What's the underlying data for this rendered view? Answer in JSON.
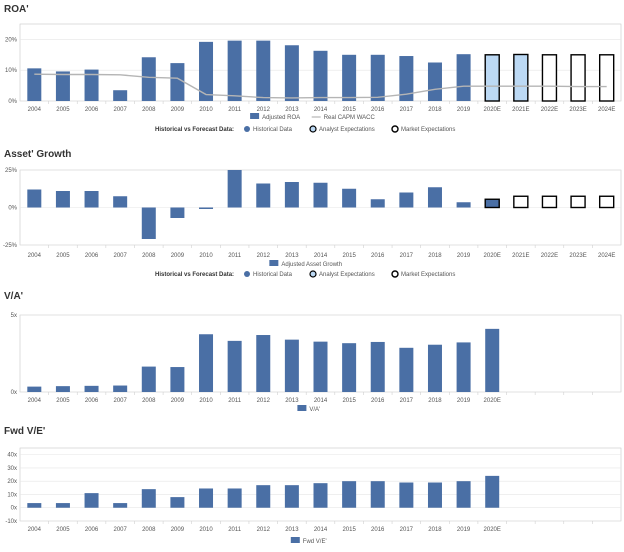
{
  "colors": {
    "historical": "#4a6fa5",
    "analyst": "#bcd9f4",
    "market_stroke": "#000000",
    "wacc": "#b5b5b5",
    "frame": "#c8c8c8"
  },
  "chart_data": [
    {
      "id": "roa",
      "type": "bar",
      "title": "ROA'",
      "categories": [
        "2004",
        "2005",
        "2006",
        "2007",
        "2008",
        "2009",
        "2010",
        "2011",
        "2012",
        "2013",
        "2014",
        "2015",
        "2016",
        "2017",
        "2018",
        "2019",
        "2020E",
        "2021E",
        "2022E",
        "2023E",
        "2024E"
      ],
      "series": [
        {
          "name": "Adjusted ROA",
          "values": [
            10.6,
            9.6,
            10.2,
            3.5,
            14.2,
            12.3,
            19.2,
            19.6,
            19.6,
            18.1,
            16.3,
            15.0,
            15.0,
            14.6,
            12.5,
            15.2,
            15.0,
            15.1,
            15.0,
            15.0,
            15.0
          ]
        },
        {
          "name": "Real CAPM WACC",
          "type": "line",
          "values": [
            8.7,
            8.6,
            8.6,
            8.5,
            7.7,
            7.4,
            2.1,
            1.7,
            1.1,
            1.0,
            1.1,
            1.1,
            1.2,
            2.2,
            3.8,
            4.8,
            4.8,
            4.8,
            4.8,
            4.7,
            4.7
          ]
        }
      ],
      "bar_styles": [
        "h",
        "h",
        "h",
        "h",
        "h",
        "h",
        "h",
        "h",
        "h",
        "h",
        "h",
        "h",
        "h",
        "h",
        "h",
        "h",
        "a",
        "a",
        "m",
        "m",
        "m"
      ],
      "yticks": [
        0,
        10,
        20
      ],
      "ytick_labels": [
        "0%",
        "10%",
        "20%"
      ],
      "ylim": [
        0,
        25
      ],
      "legend_series": [
        "Adjusted ROA",
        "Real CAPM WACC"
      ],
      "forecast_legend": true
    },
    {
      "id": "asset_growth",
      "type": "bar",
      "title": "Asset' Growth",
      "categories": [
        "2004",
        "2005",
        "2006",
        "2007",
        "2008",
        "2009",
        "2010",
        "2011",
        "2012",
        "2013",
        "2014",
        "2015",
        "2016",
        "2017",
        "2018",
        "2019",
        "2020E",
        "2021E",
        "2022E",
        "2023E",
        "2024E"
      ],
      "series": [
        {
          "name": "Adjusted Asset Growth",
          "values": [
            12,
            11,
            11,
            7.5,
            -21,
            -7,
            -1,
            25,
            16,
            17,
            16.5,
            12.5,
            5.5,
            10,
            13.5,
            3.5,
            5.5,
            7.5,
            7.5,
            7.5,
            7.5
          ]
        }
      ],
      "bar_styles": [
        "h",
        "h",
        "h",
        "h",
        "h",
        "h",
        "h",
        "h",
        "h",
        "h",
        "h",
        "h",
        "h",
        "h",
        "h",
        "h",
        "ah",
        "m",
        "m",
        "m",
        "m"
      ],
      "yticks": [
        -25,
        0,
        25
      ],
      "ytick_labels": [
        "-25%",
        "0%",
        "25%"
      ],
      "ylim": [
        -25,
        25
      ],
      "legend_series": [
        "Adjusted Asset Growth"
      ],
      "forecast_legend": true
    },
    {
      "id": "va",
      "type": "bar",
      "title": "V/A'",
      "categories": [
        "2004",
        "2005",
        "2006",
        "2007",
        "2008",
        "2009",
        "2010",
        "2011",
        "2012",
        "2013",
        "2014",
        "2015",
        "2016",
        "2017",
        "2018",
        "2019",
        "2020E",
        "",
        "",
        "",
        ""
      ],
      "series": [
        {
          "name": "V/A'",
          "values": [
            0.35,
            0.38,
            0.4,
            0.42,
            1.65,
            1.62,
            3.75,
            3.32,
            3.7,
            3.4,
            3.27,
            3.17,
            3.25,
            2.87,
            3.07,
            3.22,
            4.1,
            null,
            null,
            null,
            null
          ]
        }
      ],
      "bar_styles": [
        "h",
        "h",
        "h",
        "h",
        "h",
        "h",
        "h",
        "h",
        "h",
        "h",
        "h",
        "h",
        "h",
        "h",
        "h",
        "h",
        "h",
        "n",
        "n",
        "n",
        "n"
      ],
      "yticks": [
        0,
        5
      ],
      "ytick_labels": [
        "0x",
        "5x"
      ],
      "ylim": [
        0,
        5
      ],
      "legend_series": [
        "V/A'"
      ],
      "forecast_legend": false
    },
    {
      "id": "fwd_ve",
      "type": "bar",
      "title": "Fwd V/E'",
      "categories": [
        "2004",
        "2005",
        "2006",
        "2007",
        "2008",
        "2009",
        "2010",
        "2011",
        "2012",
        "2013",
        "2014",
        "2015",
        "2016",
        "2017",
        "2018",
        "2019",
        "2020E",
        "",
        "",
        "",
        ""
      ],
      "series": [
        {
          "name": "Fwd V/E'",
          "values": [
            3.5,
            3.5,
            11,
            3.5,
            14,
            8,
            14.5,
            14.5,
            17,
            17,
            18.5,
            20,
            20,
            19,
            19,
            20,
            24,
            null,
            null,
            null,
            null
          ]
        }
      ],
      "bar_styles": [
        "h",
        "h",
        "h",
        "h",
        "h",
        "h",
        "h",
        "h",
        "h",
        "h",
        "h",
        "h",
        "h",
        "h",
        "h",
        "h",
        "h",
        "n",
        "n",
        "n",
        "n"
      ],
      "yticks": [
        -10,
        0,
        10,
        20,
        30,
        40
      ],
      "ytick_labels": [
        "-10x",
        "0x",
        "10x",
        "20x",
        "30x",
        "40x"
      ],
      "ylim": [
        -10,
        45
      ],
      "legend_series": [
        "Fwd V/E'"
      ],
      "forecast_legend": false
    }
  ],
  "forecast_legend": {
    "label": "Historical vs Forecast Data:",
    "items": [
      "Historical Data",
      "Analyst Expectations",
      "Market Expectations"
    ]
  }
}
